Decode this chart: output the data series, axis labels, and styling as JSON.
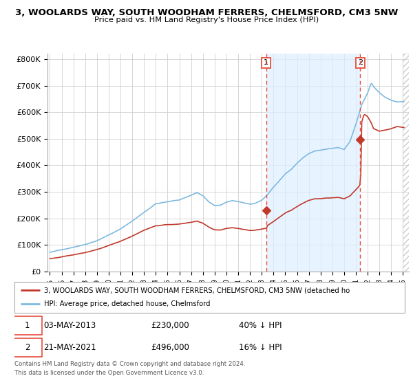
{
  "title": "3, WOOLARDS WAY, SOUTH WOODHAM FERRERS, CHELMSFORD, CM3 5NW",
  "subtitle": "Price paid vs. HM Land Registry's House Price Index (HPI)",
  "legend_line1": "3, WOOLARDS WAY, SOUTH WOODHAM FERRERS, CHELMSFORD, CM3 5NW (detached ho",
  "legend_line2": "HPI: Average price, detached house, Chelmsford",
  "footnote1": "Contains HM Land Registry data © Crown copyright and database right 2024.",
  "footnote2": "This data is licensed under the Open Government Licence v3.0.",
  "point1_date": "03-MAY-2013",
  "point1_price": "£230,000",
  "point1_hpi": "40% ↓ HPI",
  "point2_date": "21-MAY-2021",
  "point2_price": "£496,000",
  "point2_hpi": "16% ↓ HPI",
  "hpi_color": "#7fb9e0",
  "price_color": "#c0392b",
  "vline_color": "#e74c3c",
  "fill_color": "#ddeeff",
  "grid_color": "#d0d0d0",
  "bg_color": "#ffffff",
  "point1_x": 2013.37,
  "point1_y": 230000,
  "point2_x": 2021.37,
  "point2_y": 496000,
  "xlim": [
    1994.8,
    2025.5
  ],
  "ylim": [
    0,
    820000
  ],
  "yticks": [
    0,
    100000,
    200000,
    300000,
    400000,
    500000,
    600000,
    700000,
    800000
  ],
  "ytick_labels": [
    "£0",
    "£100K",
    "£200K",
    "£300K",
    "£400K",
    "£500K",
    "£600K",
    "£700K",
    "£800K"
  ],
  "xticks": [
    1995,
    1996,
    1997,
    1998,
    1999,
    2000,
    2001,
    2002,
    2003,
    2004,
    2005,
    2006,
    2007,
    2008,
    2009,
    2010,
    2011,
    2012,
    2013,
    2014,
    2015,
    2016,
    2017,
    2018,
    2019,
    2020,
    2021,
    2022,
    2023,
    2024,
    2025
  ]
}
